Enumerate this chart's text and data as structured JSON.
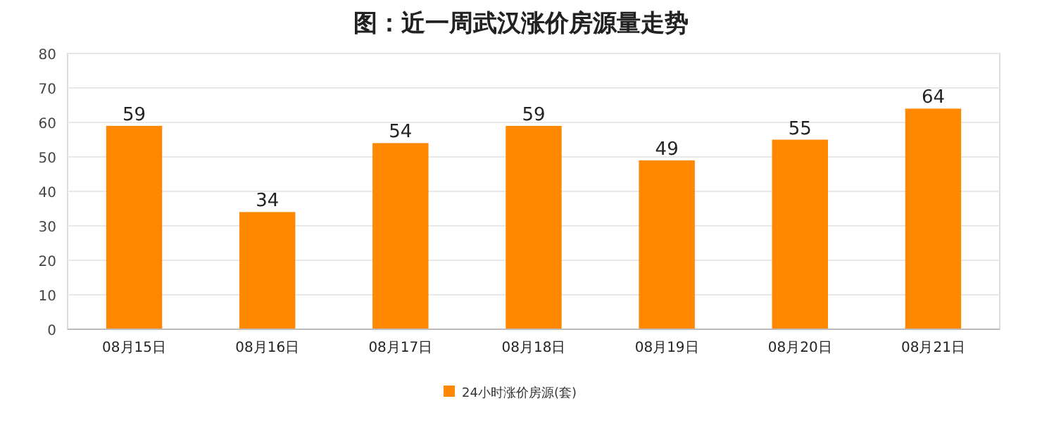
{
  "chart_data": {
    "type": "bar",
    "title": "图：近一周武汉涨价房源量走势",
    "categories": [
      "08月15日",
      "08月16日",
      "08月17日",
      "08月18日",
      "08月19日",
      "08月20日",
      "08月21日"
    ],
    "series": [
      {
        "name": "24小时涨价房源(套)",
        "color": "#ff8800",
        "values": [
          59,
          34,
          54,
          59,
          49,
          55,
          64
        ]
      }
    ],
    "ylim": [
      0,
      80
    ],
    "yticks": [
      0,
      10,
      20,
      30,
      40,
      50,
      60,
      70,
      80
    ],
    "grid": "y",
    "legend": "bottom",
    "data_labels": true
  }
}
